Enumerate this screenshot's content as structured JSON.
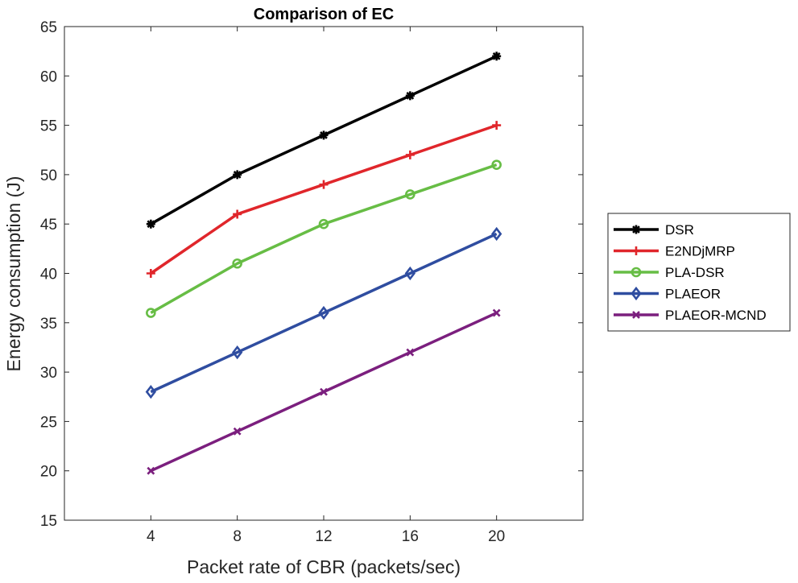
{
  "chart_data": {
    "type": "line",
    "title": "Comparison of EC",
    "xlabel": "Packet rate of CBR (packets/sec)",
    "ylabel": "Energy consumption (J)",
    "x": [
      4,
      8,
      12,
      16,
      20
    ],
    "x_tick_labels": [
      "4",
      "8",
      "12",
      "16",
      "20"
    ],
    "xlim": [
      0,
      24
    ],
    "ylim": [
      15,
      65
    ],
    "y_ticks": [
      15,
      20,
      25,
      30,
      35,
      40,
      45,
      50,
      55,
      60,
      65
    ],
    "y_tick_labels": [
      "15",
      "20",
      "25",
      "30",
      "35",
      "40",
      "45",
      "50",
      "55",
      "60",
      "65"
    ],
    "grid": false,
    "legend_position": "outside-right",
    "series": [
      {
        "name": "DSR",
        "color": "#000000",
        "marker": "asterisk",
        "values": [
          45,
          50,
          54,
          58,
          62
        ]
      },
      {
        "name": "E2NDjMRP",
        "color": "#e0262b",
        "marker": "plus",
        "values": [
          40,
          46,
          49,
          52,
          55
        ]
      },
      {
        "name": "PLA-DSR",
        "color": "#67bd45",
        "marker": "circle",
        "values": [
          36,
          41,
          45,
          48,
          51
        ]
      },
      {
        "name": "PLAEOR",
        "color": "#2f4da0",
        "marker": "diamond",
        "values": [
          28,
          32,
          36,
          40,
          44
        ]
      },
      {
        "name": "PLAEOR-MCND",
        "color": "#7b1f7e",
        "marker": "x",
        "values": [
          20,
          24,
          28,
          32,
          36
        ]
      }
    ]
  }
}
